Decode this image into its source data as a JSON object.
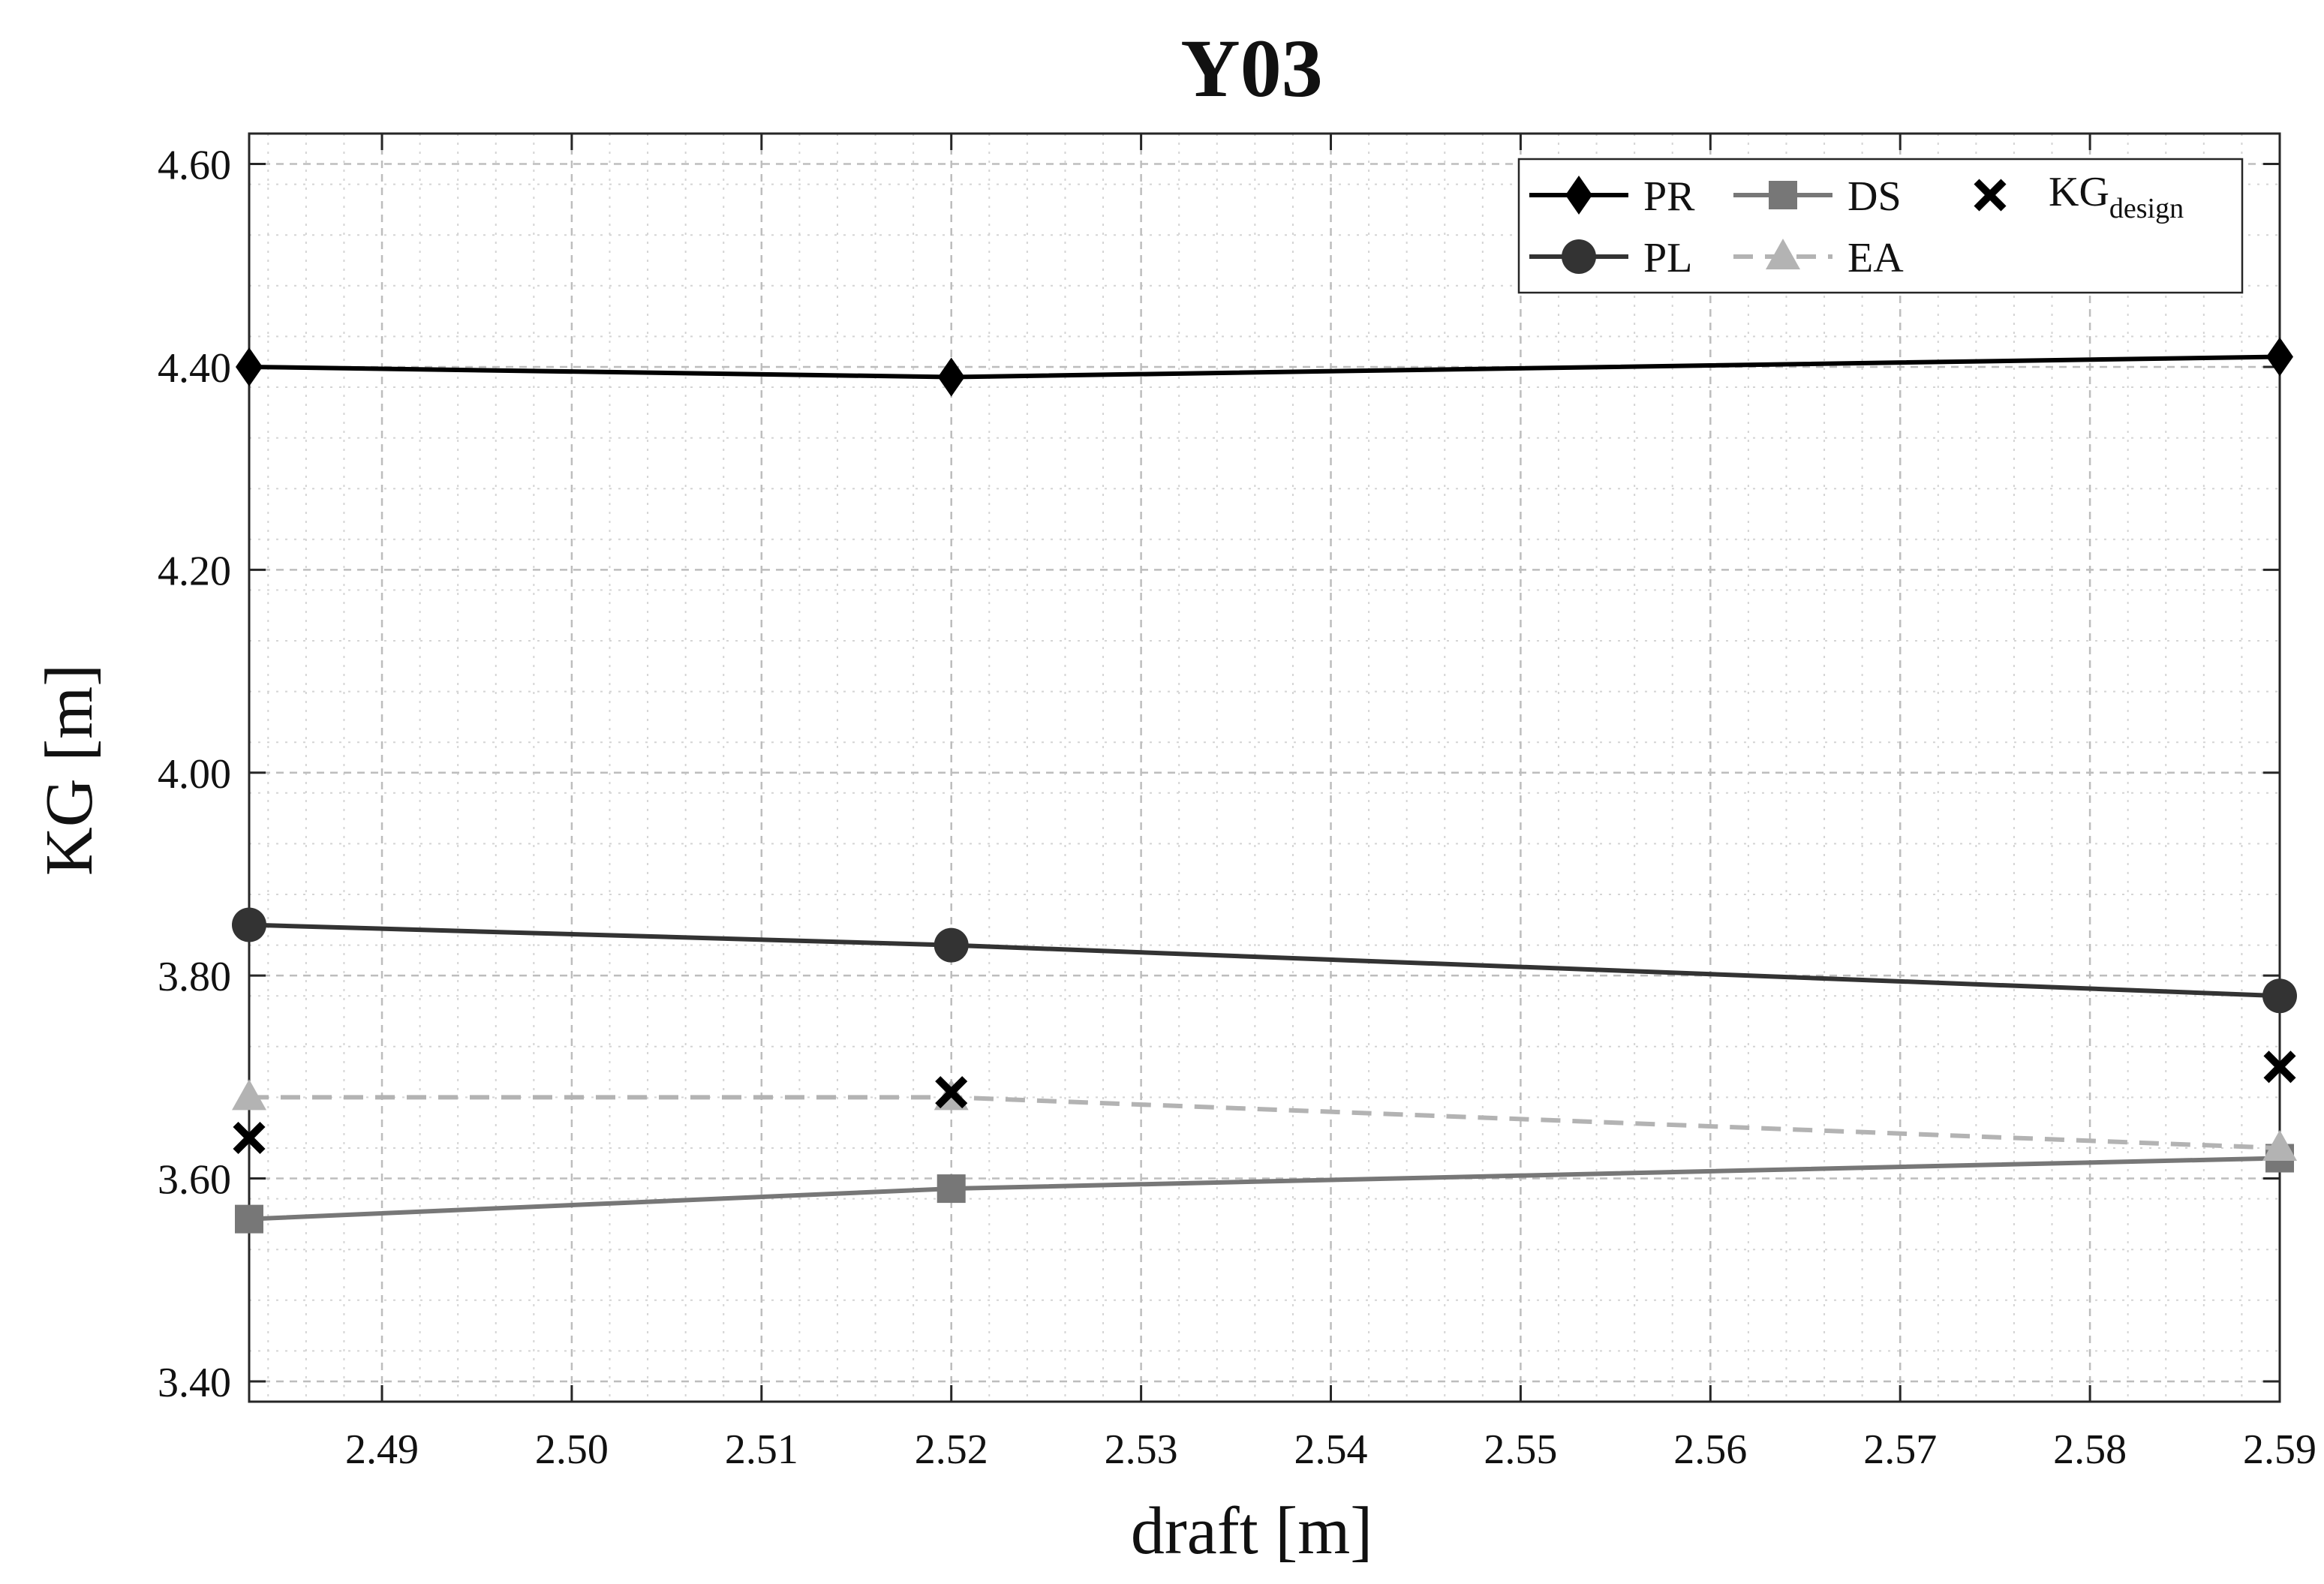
{
  "chart_data": {
    "type": "line",
    "title": "Y03",
    "xlabel": "draft [m]",
    "ylabel": "KG [m]",
    "xlim": [
      2.483,
      2.59
    ],
    "ylim": [
      3.38,
      4.63
    ],
    "xticks": [
      2.49,
      2.5,
      2.51,
      2.52,
      2.53,
      2.54,
      2.55,
      2.56,
      2.57,
      2.58,
      2.59
    ],
    "xtick_labels": [
      "2.49",
      "2.50",
      "2.51",
      "2.52",
      "2.53",
      "2.54",
      "2.55",
      "2.56",
      "2.57",
      "2.58",
      "2.59"
    ],
    "yticks": [
      3.4,
      3.6,
      3.8,
      4.0,
      4.2,
      4.4,
      4.6
    ],
    "ytick_labels": [
      "3.40",
      "3.60",
      "3.80",
      "4.00",
      "4.20",
      "4.40",
      "4.60"
    ],
    "grid": true,
    "minor_grid": true,
    "legend_position": "top-right",
    "x": [
      2.483,
      2.52,
      2.59
    ],
    "series": [
      {
        "name": "PR",
        "values": [
          4.4,
          4.39,
          4.41
        ],
        "color": "#000000",
        "marker": "diamond",
        "line": "solid"
      },
      {
        "name": "PL",
        "values": [
          3.85,
          3.83,
          3.78
        ],
        "color": "#333333",
        "marker": "circle",
        "line": "solid"
      },
      {
        "name": "DS",
        "values": [
          3.56,
          3.59,
          3.62
        ],
        "color": "#777777",
        "marker": "square",
        "line": "solid"
      },
      {
        "name": "EA",
        "values": [
          3.68,
          3.68,
          3.63
        ],
        "color": "#b3b3b3",
        "marker": "triangle",
        "line": "dashed"
      },
      {
        "name": "KG",
        "subscript": "design",
        "values": [
          3.64,
          3.685,
          3.71
        ],
        "color": "#000000",
        "marker": "x",
        "line": "none"
      }
    ]
  }
}
